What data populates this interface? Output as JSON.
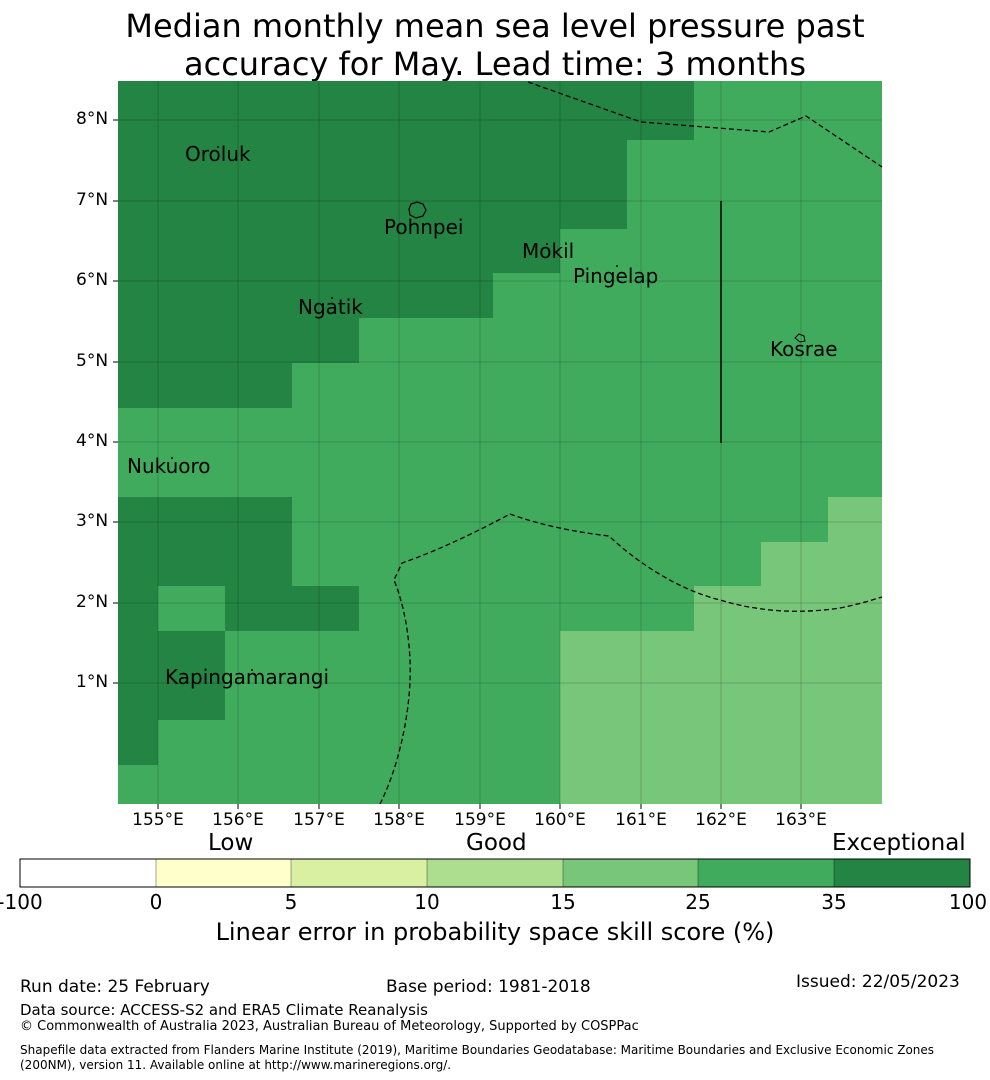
{
  "title": {
    "line1": "Median monthly mean sea level pressure past",
    "line2": "accuracy for May. Lead time: 3 months"
  },
  "map": {
    "lat_labels": [
      "8°N",
      "7°N",
      "6°N",
      "5°N",
      "4°N",
      "3°N",
      "2°N",
      "1°N"
    ],
    "lon_labels": [
      "155°E",
      "156°E",
      "157°E",
      "158°E",
      "159°E",
      "160°E",
      "161°E",
      "162°E",
      "163°E"
    ],
    "places": [
      "Oroluk",
      "Pohnpei",
      "Mokil",
      "Pingelap",
      "Ngatik",
      "Kosrae",
      "Nukuoro",
      "Kapingamarangi"
    ],
    "colors": {
      "exceptional": "#238443",
      "good_high": "#41ab5d",
      "good_mid": "#78c679",
      "good_low": "#addd8e",
      "low_high": "#d9f0a3",
      "low": "#ffffcc",
      "none": "#ffffff"
    },
    "skill_categories": {
      "description": "grid of skill category per 0.5deg cell",
      "levels": [
        "-100..0",
        "0..5",
        "5..10",
        "10..15",
        "15..25",
        "25..35",
        "35..100"
      ]
    }
  },
  "colorbar": {
    "low_label": "Low",
    "good_label": "Good",
    "exceptional_label": "Exceptional",
    "ticks": [
      "-100",
      "0",
      "5",
      "10",
      "15",
      "25",
      "35",
      "100"
    ],
    "colors": [
      "#ffffff",
      "#ffffcc",
      "#d9f0a3",
      "#addd8e",
      "#78c679",
      "#41ab5d",
      "#238443"
    ],
    "title": "Linear error in probability space skill score (%)"
  },
  "footer": {
    "run_date": "Run date: 25 February",
    "base_period": "Base period: 1981-2018",
    "issued": "Issued: 22/05/2023",
    "data_source": "Data source: ACCESS-S2 and ERA5 Climate Reanalysis",
    "copyright": "© Commonwealth of Australia 2023, Australian Bureau of Meteorology, Supported by COSPPac",
    "shapefile_line1": "Shapefile data extracted from Flanders Marine Institute (2019), Maritime Boundaries Geodatabase: Maritime Boundaries and Exclusive Economic Zones",
    "shapefile_line2": "(200NM), version 11. Available online at http://www.marineregions.org/."
  }
}
